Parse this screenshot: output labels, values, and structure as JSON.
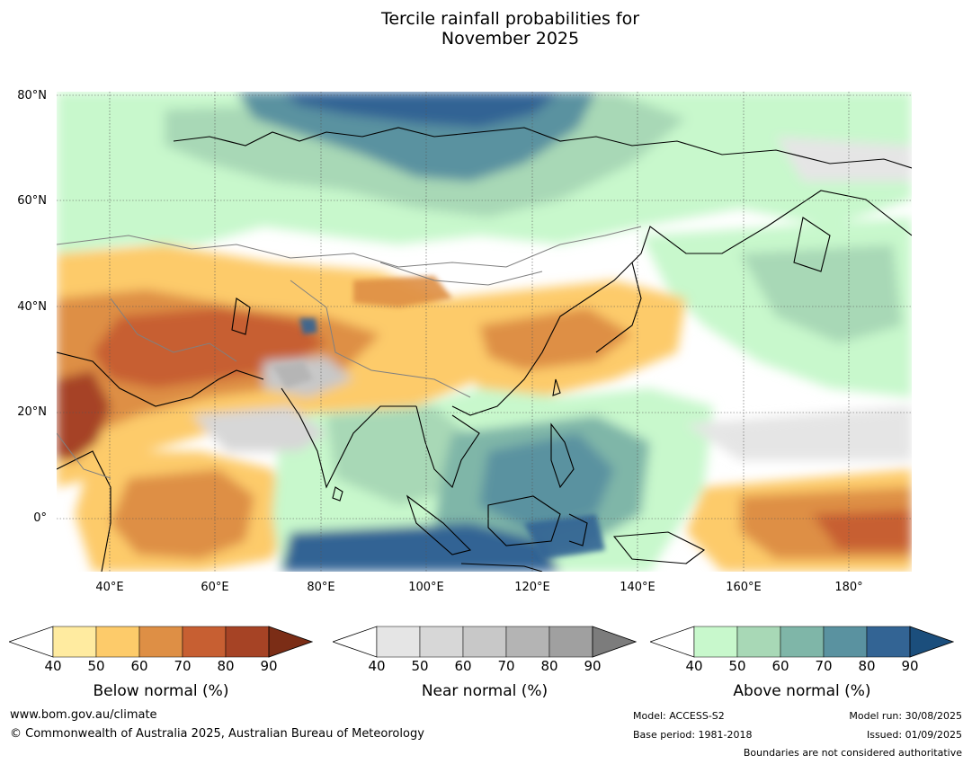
{
  "title": {
    "line1": "Tercile rainfall probabilities for",
    "line2": "November 2025"
  },
  "map": {
    "lat_labels": [
      "80°N",
      "60°N",
      "40°N",
      "20°N",
      "0°"
    ],
    "lon_labels": [
      "40°E",
      "60°E",
      "80°E",
      "100°E",
      "120°E",
      "140°E",
      "160°E",
      "180°"
    ],
    "extent": {
      "lon": [
        30,
        192
      ],
      "lat": [
        -10,
        80
      ]
    },
    "gridlines": true
  },
  "colorbars": {
    "below": {
      "label": "Below normal (%)",
      "ticks": [
        "40",
        "50",
        "60",
        "70",
        "80",
        "90"
      ],
      "colors": [
        "#ffeba0",
        "#fdcb6a",
        "#de8f45",
        "#c75f32",
        "#a64325",
        "#7b2d16"
      ]
    },
    "near": {
      "label": "Near normal (%)",
      "ticks": [
        "40",
        "50",
        "60",
        "70",
        "80",
        "90"
      ],
      "colors": [
        "#e5e5e5",
        "#d7d7d7",
        "#c8c8c8",
        "#b4b4b4",
        "#a0a0a0",
        "#7c7c7c"
      ]
    },
    "above": {
      "label": "Above normal (%)",
      "ticks": [
        "40",
        "50",
        "60",
        "70",
        "80",
        "90"
      ],
      "colors": [
        "#c8f8cc",
        "#a8d8b6",
        "#7fb6a8",
        "#5a92a0",
        "#336494",
        "#1b4e7c"
      ]
    }
  },
  "footer": {
    "url": "www.bom.gov.au/climate",
    "copyright": "© Commonwealth of Australia 2025, Australian Bureau of Meteorology",
    "model": "Model: ACCESS-S2",
    "base_period": "Base period: 1981-2018",
    "model_run": "Model run: 30/08/2025",
    "issued": "Issued: 01/09/2025",
    "boundaries": "Boundaries are not considered authoritative"
  }
}
